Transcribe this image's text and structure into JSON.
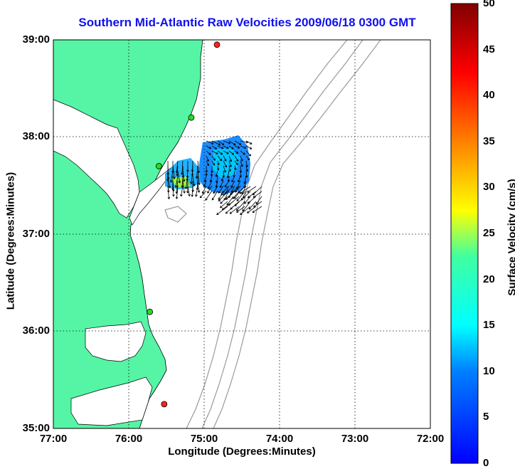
{
  "map": {
    "title": "Southern Mid-Atlantic Raw Velocities 2009/06/18 0300 GMT",
    "xlabel": "Longitude (Degrees:Minutes)",
    "ylabel": "Latitude (Degrees:Minutes)",
    "x_ticks": [
      "77:00",
      "76:00",
      "75:00",
      "74:00",
      "73:00",
      "72:00"
    ],
    "y_ticks": [
      "39:00",
      "38:00",
      "37:00",
      "36:00",
      "35:00"
    ],
    "lon_range": [
      -77,
      -72
    ],
    "lat_range": [
      35,
      39
    ],
    "land_color": "#55f5a5",
    "gridlines": "dotted"
  },
  "colorbar": {
    "label": "Surface Velocity (cm/s)",
    "ticks": [
      "50",
      "45",
      "40",
      "35",
      "30",
      "25",
      "20",
      "15",
      "10",
      "5",
      "0"
    ],
    "range": [
      0,
      50
    ],
    "colormap": "jet"
  },
  "stations": [
    {
      "name": "",
      "lon": -74.83,
      "lat": 38.95,
      "color": "#ff2020"
    },
    {
      "name": "",
      "lon": -75.17,
      "lat": 38.2,
      "color": "#22dd22"
    },
    {
      "name": "",
      "lon": -75.6,
      "lat": 37.7,
      "color": "#22dd22"
    },
    {
      "name": "",
      "lon": -75.72,
      "lat": 36.2,
      "color": "#22dd22"
    },
    {
      "name": "",
      "lon": -75.53,
      "lat": 35.25,
      "color": "#ff2020"
    }
  ]
}
